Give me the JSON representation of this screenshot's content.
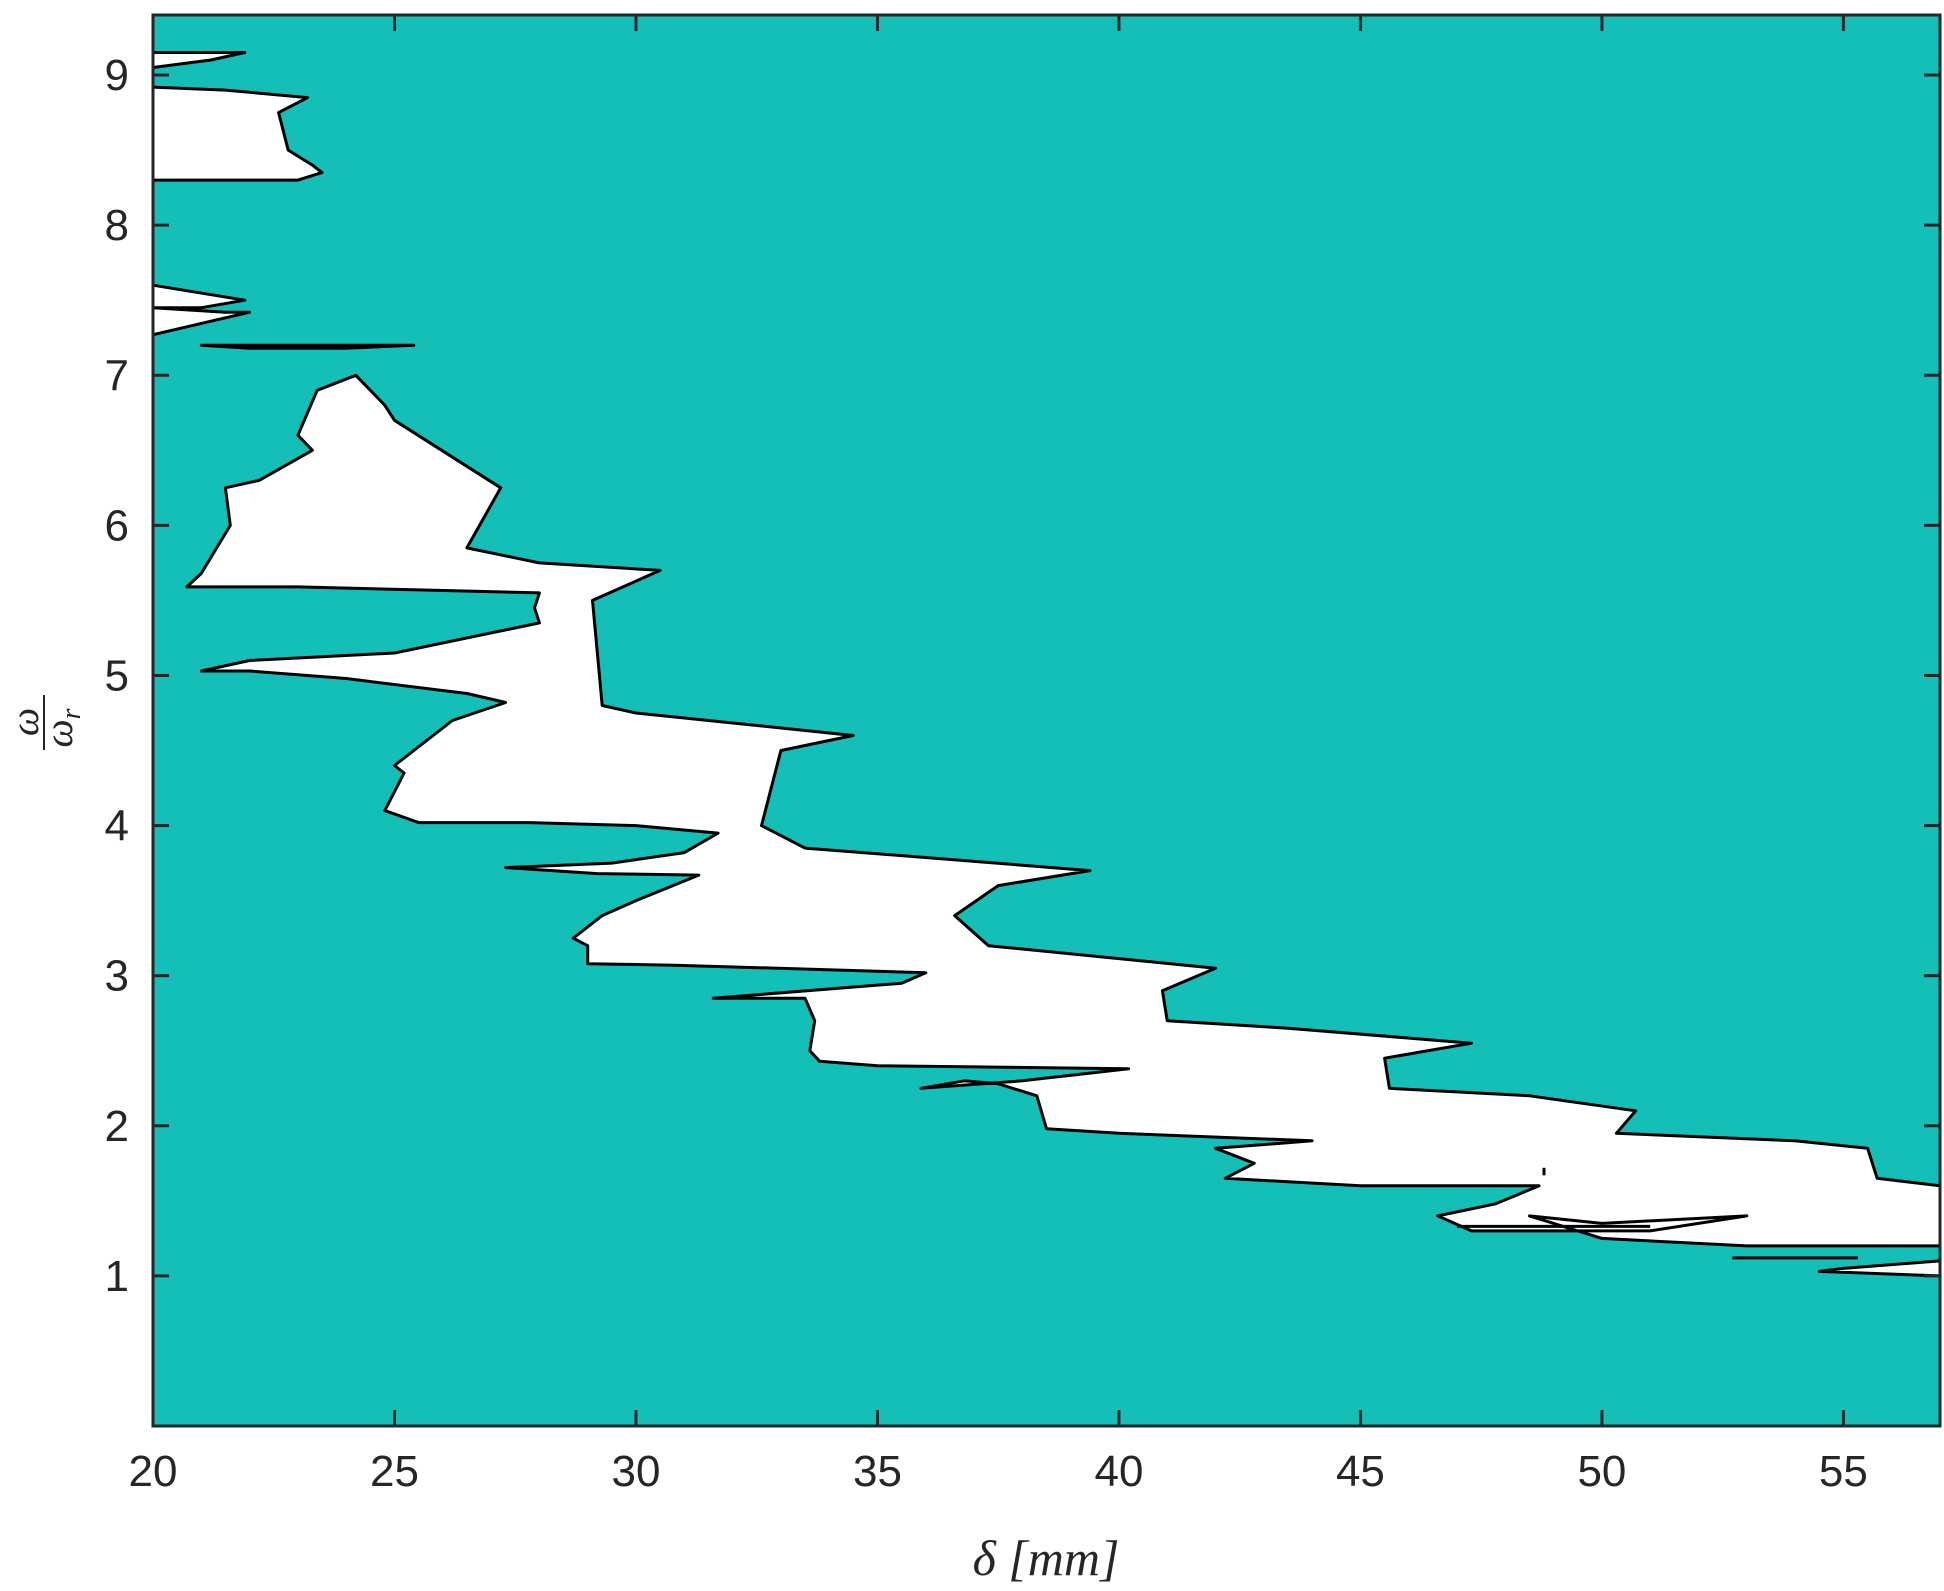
{
  "chart_data": {
    "type": "area",
    "xlabel": "δ [mm]",
    "ylabel_numerator": "ω",
    "ylabel_denominator": "ω",
    "ylabel_subscript": "r",
    "xlim": [
      20,
      57
    ],
    "ylim": [
      0,
      9.4
    ],
    "xticks": [
      "20",
      "25",
      "30",
      "35",
      "40",
      "45",
      "50",
      "55"
    ],
    "yticks": [
      "1",
      "2",
      "3",
      "4",
      "5",
      "6",
      "7",
      "8",
      "9"
    ],
    "grid": false,
    "colors": {
      "fill": "#14bfb8",
      "region": "#ffffff",
      "contour": "#000000",
      "axis": "#262626"
    },
    "regions": [
      {
        "name": "main-white-region",
        "points": [
          [
            24.2,
            7.0
          ],
          [
            24.8,
            6.8
          ],
          [
            25.0,
            6.7
          ],
          [
            27.2,
            6.25
          ],
          [
            26.5,
            5.85
          ],
          [
            28.0,
            5.75
          ],
          [
            30.5,
            5.7
          ],
          [
            29.1,
            5.5
          ],
          [
            29.3,
            4.8
          ],
          [
            30.0,
            4.75
          ],
          [
            34.5,
            4.6
          ],
          [
            33.0,
            4.5
          ],
          [
            32.6,
            4.0
          ],
          [
            33.5,
            3.85
          ],
          [
            35.5,
            3.8
          ],
          [
            39.4,
            3.7
          ],
          [
            37.5,
            3.6
          ],
          [
            36.6,
            3.4
          ],
          [
            37.3,
            3.2
          ],
          [
            42.0,
            3.05
          ],
          [
            40.9,
            2.9
          ],
          [
            41.0,
            2.7
          ],
          [
            43.5,
            2.65
          ],
          [
            47.3,
            2.55
          ],
          [
            45.5,
            2.45
          ],
          [
            45.6,
            2.25
          ],
          [
            48.5,
            2.2
          ],
          [
            50.7,
            2.1
          ],
          [
            50.3,
            1.95
          ],
          [
            54.0,
            1.9
          ],
          [
            55.5,
            1.85
          ],
          [
            55.7,
            1.65
          ],
          [
            57.0,
            1.6
          ],
          [
            57.0,
            1.2
          ],
          [
            53.0,
            1.2
          ],
          [
            50.0,
            1.25
          ],
          [
            48.5,
            1.4
          ],
          [
            50.0,
            1.35
          ],
          [
            53.0,
            1.4
          ],
          [
            51.0,
            1.3
          ],
          [
            48.5,
            1.3
          ],
          [
            47.3,
            1.3
          ],
          [
            46.6,
            1.4
          ],
          [
            47.8,
            1.48
          ],
          [
            48.7,
            1.6
          ],
          [
            45.0,
            1.6
          ],
          [
            42.2,
            1.65
          ],
          [
            42.8,
            1.75
          ],
          [
            42.0,
            1.85
          ],
          [
            44.0,
            1.9
          ],
          [
            40.0,
            1.95
          ],
          [
            38.5,
            1.98
          ],
          [
            38.3,
            2.2
          ],
          [
            37.5,
            2.28
          ],
          [
            36.8,
            2.3
          ],
          [
            35.9,
            2.25
          ],
          [
            38.0,
            2.3
          ],
          [
            40.2,
            2.38
          ],
          [
            35.0,
            2.4
          ],
          [
            33.8,
            2.43
          ],
          [
            33.6,
            2.5
          ],
          [
            33.7,
            2.7
          ],
          [
            33.5,
            2.85
          ],
          [
            31.6,
            2.85
          ],
          [
            35.5,
            2.95
          ],
          [
            36.0,
            3.02
          ],
          [
            30.8,
            3.07
          ],
          [
            29.0,
            3.08
          ],
          [
            29.0,
            3.2
          ],
          [
            28.7,
            3.25
          ],
          [
            29.3,
            3.4
          ],
          [
            30.0,
            3.5
          ],
          [
            31.3,
            3.67
          ],
          [
            29.2,
            3.68
          ],
          [
            27.3,
            3.72
          ],
          [
            29.5,
            3.75
          ],
          [
            31.0,
            3.82
          ],
          [
            31.7,
            3.95
          ],
          [
            30.0,
            4.0
          ],
          [
            27.8,
            4.02
          ],
          [
            25.5,
            4.02
          ],
          [
            24.8,
            4.1
          ],
          [
            25.2,
            4.35
          ],
          [
            25.0,
            4.4
          ],
          [
            26.2,
            4.7
          ],
          [
            27.3,
            4.82
          ],
          [
            26.5,
            4.88
          ],
          [
            24.0,
            4.98
          ],
          [
            22.0,
            5.03
          ],
          [
            21.0,
            5.03
          ],
          [
            22.0,
            5.1
          ],
          [
            25.0,
            5.15
          ],
          [
            28.0,
            5.35
          ],
          [
            27.9,
            5.45
          ],
          [
            28.0,
            5.55
          ],
          [
            25.5,
            5.57
          ],
          [
            23.0,
            5.59
          ],
          [
            20.7,
            5.59
          ],
          [
            21.0,
            5.68
          ],
          [
            21.6,
            6.0
          ],
          [
            21.5,
            6.25
          ],
          [
            22.2,
            6.3
          ],
          [
            23.3,
            6.5
          ],
          [
            23.0,
            6.6
          ],
          [
            23.4,
            6.9
          ],
          [
            24.2,
            7.0
          ]
        ]
      },
      {
        "name": "top-white-region",
        "points": [
          [
            20.0,
            9.15
          ],
          [
            21.9,
            9.15
          ],
          [
            21.2,
            9.1
          ],
          [
            20.0,
            9.05
          ],
          [
            20.0,
            8.92
          ],
          [
            21.5,
            8.9
          ],
          [
            23.2,
            8.85
          ],
          [
            22.6,
            8.75
          ],
          [
            22.8,
            8.5
          ],
          [
            23.3,
            8.4
          ],
          [
            23.5,
            8.35
          ],
          [
            23.0,
            8.3
          ],
          [
            21.5,
            8.3
          ],
          [
            20.0,
            8.3
          ],
          [
            20.0,
            9.15
          ]
        ]
      },
      {
        "name": "left-white-region",
        "points": [
          [
            20.0,
            7.6
          ],
          [
            21.9,
            7.5
          ],
          [
            21.0,
            7.45
          ],
          [
            20.0,
            7.45
          ],
          [
            21.5,
            7.42
          ],
          [
            22.0,
            7.42
          ],
          [
            20.0,
            7.27
          ],
          [
            20.0,
            7.6
          ]
        ]
      },
      {
        "name": "thin-white-sliver",
        "points": [
          [
            21.0,
            7.2
          ],
          [
            25.4,
            7.2
          ],
          [
            24.0,
            7.18
          ],
          [
            22.0,
            7.18
          ],
          [
            21.0,
            7.2
          ]
        ]
      },
      {
        "name": "bottom-right-sliver",
        "points": [
          [
            57.0,
            1.1
          ],
          [
            55.0,
            1.05
          ],
          [
            54.5,
            1.03
          ],
          [
            57.0,
            1.0
          ],
          [
            57.0,
            1.1
          ]
        ]
      }
    ],
    "lines": [
      {
        "name": "contour-line-1",
        "points": [
          [
            52.7,
            1.12
          ],
          [
            55.3,
            1.12
          ]
        ]
      },
      {
        "name": "contour-line-2",
        "points": [
          [
            47.0,
            1.33
          ],
          [
            51.0,
            1.33
          ]
        ]
      },
      {
        "name": "contour-line-3",
        "points": [
          [
            48.8,
            1.72
          ],
          [
            48.8,
            1.67
          ]
        ]
      }
    ]
  }
}
